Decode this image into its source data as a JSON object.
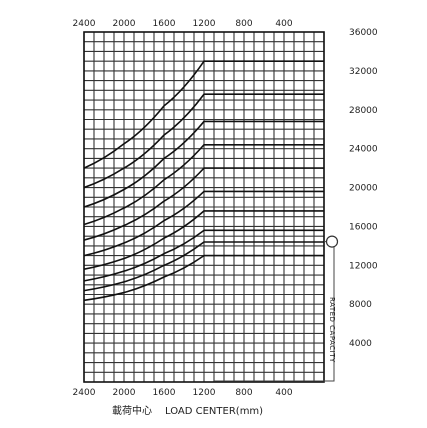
{
  "chart_data": {
    "type": "line",
    "title": "",
    "xlabel_cn": "載荷中心",
    "xlabel": "LOAD CENTER(mm)",
    "ylabel": "RATED CAPACITY",
    "x_ticks": [
      "2400",
      "2000",
      "1600",
      "1200",
      "800",
      "400"
    ],
    "y_ticks": [
      "36000",
      "32000",
      "28000",
      "24000",
      "20000",
      "16000",
      "12000",
      "8000",
      "4000"
    ],
    "x_reversed": true,
    "xlim": [
      0,
      2400
    ],
    "ylim": [
      0,
      36000
    ],
    "grid": true,
    "series": [
      {
        "x": [
          2400,
          2000,
          1600,
          1200,
          0
        ],
        "values": [
          8400,
          9200,
          10800,
          13000,
          13000
        ]
      },
      {
        "x": [
          2400,
          2000,
          1600,
          1200,
          0
        ],
        "values": [
          9400,
          10300,
          12000,
          14400,
          14400
        ]
      },
      {
        "x": [
          2400,
          2000,
          1600,
          1200,
          0
        ],
        "values": [
          10400,
          11400,
          13200,
          15600,
          15600
        ]
      },
      {
        "x": [
          2400,
          2000,
          1600,
          1200,
          0
        ],
        "values": [
          11600,
          12700,
          14800,
          17600,
          17600
        ]
      },
      {
        "x": [
          2400,
          2000,
          1600,
          1200,
          0
        ],
        "values": [
          13000,
          14300,
          16600,
          19600,
          19600
        ]
      },
      {
        "x": [
          2400,
          2000,
          1600,
          1200,
          0
        ],
        "values": [
          14600,
          16100,
          18600,
          22000,
          22000
        ]
      },
      {
        "x": [
          2400,
          2000,
          1600,
          1200,
          0
        ],
        "values": [
          16200,
          17900,
          20800,
          24400,
          24400
        ]
      },
      {
        "x": [
          2400,
          2000,
          1600,
          1200,
          0
        ],
        "values": [
          18000,
          19800,
          23000,
          26800,
          26800
        ]
      },
      {
        "x": [
          2400,
          2000,
          1600,
          1200,
          0
        ],
        "values": [
          20000,
          22000,
          25400,
          29600,
          29600
        ]
      },
      {
        "x": [
          2400,
          2000,
          1600,
          1200,
          0
        ],
        "values": [
          22000,
          24500,
          28400,
          33000,
          33000
        ]
      }
    ]
  }
}
